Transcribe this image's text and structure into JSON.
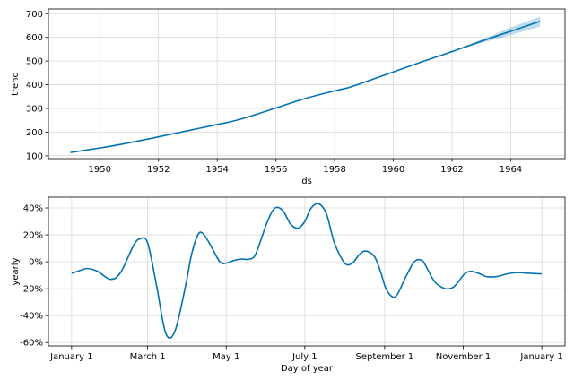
{
  "colors": {
    "line": "#0072B2",
    "band": "#0072B2",
    "grid": "#d9d9d9",
    "axis": "#000000",
    "background": "#ffffff"
  },
  "chart_data": [
    {
      "type": "line",
      "xlabel": "ds",
      "ylabel": "trend",
      "x_ticks": [
        1950,
        1952,
        1954,
        1956,
        1958,
        1960,
        1962,
        1964
      ],
      "y_ticks": [
        100,
        200,
        300,
        400,
        500,
        600,
        700
      ],
      "xlim": [
        1948.25,
        1965.85
      ],
      "ylim": [
        88,
        720
      ],
      "grid": true,
      "series": [
        {
          "x": [
            1949.0,
            1950.0,
            1950.5,
            1951.0,
            1952.0,
            1953.0,
            1954.0,
            1954.5,
            1955.0,
            1956.0,
            1957.0,
            1958.0,
            1958.5,
            1959.0,
            1960.0,
            1961.0,
            1962.0,
            1963.0,
            1964.0,
            1965.0
          ],
          "y": [
            114,
            133,
            143,
            155,
            180,
            206,
            232,
            245,
            262,
            302,
            342,
            374,
            389,
            410,
            454,
            498,
            540,
            584,
            626,
            668
          ]
        }
      ],
      "uncertainty": {
        "x": [
          1962.0,
          1963.0,
          1964.0,
          1965.0
        ],
        "lower": [
          540,
          576,
          610,
          646
        ],
        "upper": [
          540,
          590,
          642,
          688
        ]
      }
    },
    {
      "type": "line",
      "xlabel": "Day of year",
      "ylabel": "yearly",
      "x_ticks": [
        "January 1",
        "March 1",
        "May 1",
        "July 1",
        "September 1",
        "November 1",
        "January 1"
      ],
      "x_tick_days": [
        0,
        59,
        120,
        181,
        243,
        304,
        365
      ],
      "y_ticks": [
        "40%",
        "20%",
        "0%",
        "-20%",
        "-40%",
        "-60%"
      ],
      "y_tick_values": [
        40,
        20,
        0,
        -20,
        -40,
        -60
      ],
      "xlim": [
        -18,
        383
      ],
      "ylim": [
        -62.5,
        48
      ],
      "grid": true,
      "series": [
        {
          "x": [
            0,
            5,
            12,
            20,
            30,
            38,
            48,
            53,
            59,
            66,
            73,
            80,
            88,
            93,
            98,
            102,
            108,
            115,
            120,
            126,
            132,
            138,
            143,
            152,
            158,
            164,
            170,
            176,
            181,
            186,
            192,
            198,
            204,
            212,
            218,
            223,
            228,
            235,
            240,
            244,
            249,
            253,
            259,
            266,
            272,
            276,
            282,
            290,
            296,
            300,
            305,
            310,
            317,
            322,
            330,
            338,
            346,
            355,
            365
          ],
          "y": [
            -8.5,
            -7,
            -5,
            -7,
            -13,
            -8,
            12,
            17,
            14,
            -18,
            -53,
            -52,
            -20,
            5,
            20,
            21,
            12,
            0,
            -1,
            1,
            2,
            2,
            6,
            30,
            40,
            38,
            28,
            25,
            30,
            40,
            43,
            35,
            14,
            -1,
            -1,
            5,
            8,
            4,
            -8,
            -20,
            -26,
            -24,
            -12,
            0,
            1,
            -5,
            -15,
            -20,
            -19,
            -15,
            -9,
            -7,
            -9,
            -11,
            -11,
            -9,
            -8,
            -8.5,
            -9
          ]
        }
      ]
    }
  ]
}
